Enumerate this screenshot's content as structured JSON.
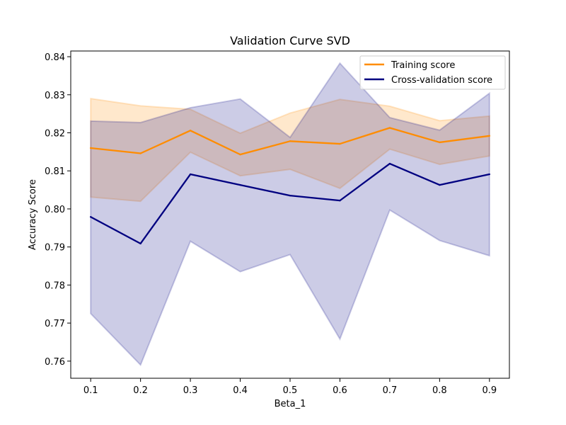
{
  "chart_data": {
    "type": "line",
    "title": "Validation Curve SVD",
    "xlabel": "Beta_1",
    "ylabel": "Accuracy Score",
    "x": [
      0.1,
      0.2,
      0.3,
      0.4,
      0.5,
      0.6,
      0.7,
      0.8,
      0.9
    ],
    "xlim": [
      0.06,
      0.94
    ],
    "ylim": [
      0.7555,
      0.8415
    ],
    "xticks": [
      "0.1",
      "0.2",
      "0.3",
      "0.4",
      "0.5",
      "0.6",
      "0.7",
      "0.8",
      "0.9"
    ],
    "yticks": [
      "0.76",
      "0.77",
      "0.78",
      "0.79",
      "0.80",
      "0.81",
      "0.82",
      "0.83",
      "0.84"
    ],
    "legend_position": "top-right",
    "grid": false,
    "series": [
      {
        "name": "Training score",
        "color": "#ff8c00",
        "values": [
          0.816,
          0.8146,
          0.8206,
          0.8143,
          0.8178,
          0.8171,
          0.8213,
          0.8175,
          0.8192
        ],
        "upper": [
          0.829,
          0.8271,
          0.8262,
          0.8199,
          0.8252,
          0.8288,
          0.827,
          0.8232,
          0.8244
        ],
        "lower": [
          0.8031,
          0.802,
          0.8149,
          0.8087,
          0.8104,
          0.8054,
          0.8157,
          0.8117,
          0.8139
        ]
      },
      {
        "name": "Cross-validation score",
        "color": "#000080",
        "values": [
          0.7979,
          0.7909,
          0.8091,
          0.8063,
          0.8035,
          0.8022,
          0.8119,
          0.8063,
          0.8091
        ],
        "upper": [
          0.8231,
          0.8227,
          0.8266,
          0.8289,
          0.8188,
          0.8383,
          0.824,
          0.8207,
          0.8304
        ],
        "lower": [
          0.7725,
          0.759,
          0.7915,
          0.7835,
          0.788,
          0.7658,
          0.7997,
          0.7917,
          0.7877
        ]
      }
    ]
  }
}
